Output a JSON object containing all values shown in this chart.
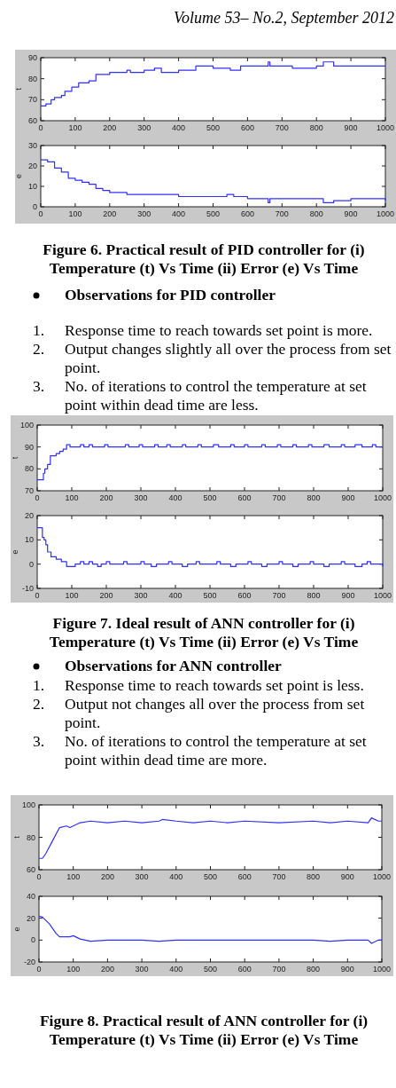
{
  "chart_data": [
    {
      "type": "step",
      "ylabel": "t",
      "color": "#3030ff",
      "xlim": [
        0,
        1000
      ],
      "ylim": [
        60,
        90
      ],
      "xticks": [
        0,
        100,
        200,
        300,
        400,
        500,
        600,
        700,
        800,
        900,
        1000
      ],
      "yticks": [
        60,
        70,
        80,
        90
      ],
      "x": [
        0,
        10,
        15,
        30,
        40,
        60,
        70,
        90,
        110,
        130,
        140,
        160,
        180,
        200,
        250,
        260,
        300,
        330,
        350,
        400,
        450,
        500,
        550,
        580,
        650,
        660,
        665,
        700,
        730,
        800,
        820,
        850,
        900,
        950,
        1000
      ],
      "values": [
        67,
        67,
        68,
        70,
        71,
        72,
        74,
        76,
        78,
        78,
        79,
        82,
        82,
        83,
        84,
        83,
        84,
        85,
        83,
        84,
        86,
        85,
        84,
        86,
        86,
        88,
        86,
        86,
        85,
        86,
        88,
        86,
        86,
        86,
        86
      ],
      "annotations": [
        "Volume 53– No.2, September 2012"
      ]
    },
    {
      "type": "step",
      "ylabel": "e",
      "color": "#3030ff",
      "xlim": [
        0,
        1000
      ],
      "ylim": [
        0,
        30
      ],
      "xticks": [
        0,
        100,
        200,
        300,
        400,
        500,
        600,
        700,
        800,
        900,
        1000
      ],
      "yticks": [
        0,
        10,
        20,
        30
      ],
      "x": [
        0,
        20,
        40,
        60,
        80,
        100,
        120,
        140,
        160,
        180,
        200,
        250,
        300,
        350,
        400,
        450,
        500,
        540,
        560,
        600,
        650,
        660,
        665,
        700,
        800,
        820,
        850,
        900,
        950,
        1000
      ],
      "values": [
        23,
        22,
        19,
        17,
        14,
        13,
        12,
        11,
        9,
        8,
        7,
        6,
        6,
        6,
        5,
        5,
        5,
        6,
        5,
        4,
        4,
        2,
        4,
        4,
        4,
        2,
        3,
        4,
        4,
        3
      ],
      "annotations": [
        "Figure 6. Practical result of PID controller for (i) Temperature (t) Vs Time (ii) Error (e) Vs Time",
        "Observations for PID controller",
        "1. Response time to reach towards set point is more.",
        "2. Output changes slightly all over the process from set point.",
        "3. No. of iterations to control the temperature at set point within dead time are less."
      ]
    },
    {
      "type": "step",
      "ylabel": "t",
      "color": "#3030ff",
      "xlim": [
        0,
        1000
      ],
      "ylim": [
        70,
        100
      ],
      "xticks": [
        0,
        100,
        200,
        300,
        400,
        500,
        600,
        700,
        800,
        900,
        1000
      ],
      "yticks": [
        70,
        80,
        90,
        100
      ],
      "x": [
        0,
        15,
        18,
        22,
        30,
        38,
        55,
        65,
        75,
        85,
        95,
        125,
        135,
        150,
        160,
        195,
        205,
        235,
        255,
        265,
        295,
        305,
        340,
        350,
        375,
        385,
        420,
        430,
        465,
        475,
        510,
        525,
        560,
        570,
        600,
        610,
        650,
        660,
        695,
        705,
        740,
        750,
        785,
        795,
        830,
        845,
        880,
        890,
        920,
        940,
        970,
        980,
        1000
      ],
      "values": [
        75,
        75,
        78,
        80,
        82,
        86,
        87,
        88,
        89,
        91,
        90,
        91,
        90,
        91,
        90,
        91,
        90,
        90,
        91,
        90,
        91,
        90,
        91,
        90,
        91,
        90,
        91,
        90,
        91,
        90,
        91,
        90,
        91,
        90,
        91,
        90,
        91,
        90,
        91,
        90,
        91,
        90,
        91,
        90,
        91,
        90,
        91,
        90,
        91,
        90,
        91,
        90,
        90
      ]
    },
    {
      "type": "step",
      "ylabel": "e",
      "color": "#3030ff",
      "xlim": [
        0,
        1000
      ],
      "ylim": [
        -10,
        20
      ],
      "xticks": [
        0,
        100,
        200,
        300,
        400,
        500,
        600,
        700,
        800,
        900,
        1000
      ],
      "yticks": [
        -10,
        0,
        10,
        20
      ],
      "x": [
        0,
        10,
        15,
        20,
        25,
        30,
        40,
        55,
        70,
        85,
        100,
        110,
        125,
        135,
        150,
        160,
        175,
        185,
        200,
        210,
        250,
        260,
        300,
        310,
        330,
        345,
        380,
        390,
        420,
        435,
        460,
        470,
        520,
        530,
        560,
        575,
        610,
        620,
        650,
        665,
        700,
        710,
        740,
        755,
        790,
        800,
        830,
        845,
        880,
        890,
        920,
        940,
        955,
        965,
        990,
        1000
      ],
      "values": [
        15,
        15,
        11,
        10,
        8,
        5,
        3,
        2,
        1,
        -1,
        -1,
        0,
        1,
        0,
        1,
        0,
        -1,
        0,
        1,
        0,
        1,
        0,
        1,
        0,
        -1,
        0,
        1,
        0,
        -1,
        0,
        1,
        0,
        1,
        0,
        -1,
        0,
        1,
        0,
        -1,
        0,
        1,
        0,
        -1,
        0,
        1,
        0,
        -1,
        0,
        1,
        0,
        -1,
        0,
        1,
        0,
        0,
        -1
      ],
      "annotations": [
        "Figure 7. Ideal result of ANN controller for (i) Temperature (t) Vs Time (ii) Error (e) Vs Time",
        "Observations for ANN controller",
        "1. Response time to reach towards set point is less.",
        "2. Output not changes all over the process from set point.",
        "3. No. of iterations to control the temperature at set point within dead time are more."
      ]
    },
    {
      "type": "line",
      "ylabel": "t",
      "color": "#3030ff",
      "xlim": [
        0,
        1000
      ],
      "ylim": [
        60,
        100
      ],
      "xticks": [
        0,
        100,
        200,
        300,
        400,
        500,
        600,
        700,
        800,
        900,
        1000
      ],
      "yticks": [
        60,
        80,
        100
      ],
      "x": [
        0,
        10,
        20,
        40,
        60,
        80,
        90,
        100,
        120,
        150,
        200,
        250,
        300,
        350,
        360,
        400,
        450,
        500,
        550,
        600,
        700,
        800,
        850,
        900,
        960,
        970,
        990,
        1000
      ],
      "values": [
        67,
        67,
        70,
        78,
        86,
        87,
        86,
        87,
        89,
        90,
        89,
        90,
        89,
        90,
        91,
        90,
        89,
        90,
        89,
        90,
        89,
        90,
        89,
        90,
        89,
        92,
        90,
        90
      ]
    },
    {
      "type": "line",
      "ylabel": "e",
      "color": "#3030ff",
      "xlim": [
        0,
        1000
      ],
      "ylim": [
        -20,
        40
      ],
      "xticks": [
        0,
        100,
        200,
        300,
        400,
        500,
        600,
        700,
        800,
        900,
        1000
      ],
      "yticks": [
        -20,
        0,
        20,
        40
      ],
      "x": [
        0,
        10,
        30,
        50,
        60,
        90,
        100,
        120,
        150,
        200,
        250,
        300,
        350,
        400,
        500,
        600,
        700,
        800,
        850,
        900,
        960,
        970,
        990,
        1000
      ],
      "values": [
        22,
        21,
        15,
        6,
        3,
        3,
        4,
        1,
        -1,
        0,
        0,
        0,
        -1,
        0,
        0,
        0,
        0,
        0,
        -1,
        0,
        0,
        -3,
        0,
        0
      ],
      "annotations": [
        "Figure 8. Practical result of ANN controller for (i) Temperature (t) Vs Time (ii) Error (e) Vs Time"
      ]
    }
  ]
}
